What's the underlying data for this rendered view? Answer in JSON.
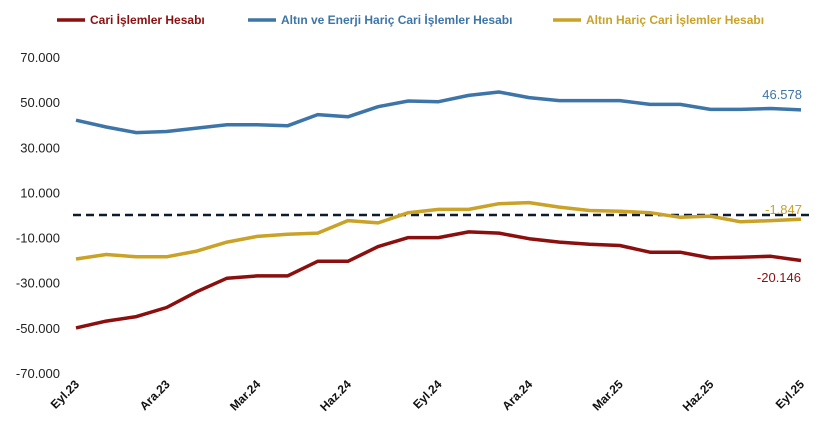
{
  "chart_data": {
    "type": "line",
    "title": "",
    "xlabel": "",
    "ylabel": "",
    "ylim": [
      -70000,
      70000
    ],
    "yticks": [
      "70.000",
      "50.000",
      "30.000",
      "10.000",
      "-10.000",
      "-30.000",
      "-50.000",
      "-70.000"
    ],
    "ytick_values": [
      70000,
      50000,
      30000,
      10000,
      -10000,
      -30000,
      -50000,
      -70000
    ],
    "x": [
      "Eyl.23",
      "Eki.23",
      "Kas.23",
      "Ara.23",
      "Oca.24",
      "Şub.24",
      "Mar.24",
      "Nis.24",
      "May.24",
      "Haz.24",
      "Tem.24",
      "Ağu.24",
      "Eyl.24",
      "Eki.24",
      "Kas.24",
      "Ara.24",
      "Oca.25",
      "Şub.25",
      "Mar.25",
      "Nis.25",
      "May.25",
      "Haz.25",
      "Tem.25",
      "Ağu.25",
      "Eyl.25"
    ],
    "xtick_labels": [
      "Eyl.23",
      "Ara.23",
      "Mar.24",
      "Haz.24",
      "Eyl.24",
      "Ara.24",
      "Mar.25",
      "Haz.25",
      "Eyl.25"
    ],
    "xtick_indices": [
      0,
      3,
      6,
      9,
      12,
      15,
      18,
      21,
      24
    ],
    "grid": false,
    "legend_position": "top",
    "reference_line": {
      "value": 0,
      "style": "dashed",
      "color": "#0d1b2a"
    },
    "series": [
      {
        "name": "Cari İşlemler Hesabı",
        "color": "#8b0f0f",
        "values": [
          -50000,
          -47000,
          -45000,
          -41000,
          -34000,
          -28000,
          -27000,
          -27000,
          -20500,
          -20500,
          -14000,
          -10000,
          -10000,
          -7500,
          -8000,
          -10500,
          -12000,
          -13000,
          -13500,
          -16500,
          -16500,
          -19000,
          -18700,
          -18300,
          -20146
        ],
        "end_label": "-20.146"
      },
      {
        "name": "Altın ve Enerji Hariç Cari İşlemler Hesabı",
        "color": "#3e75a8",
        "values": [
          42000,
          39000,
          36500,
          37000,
          38500,
          40000,
          40000,
          39500,
          44500,
          43500,
          48000,
          50500,
          50200,
          53000,
          54500,
          52000,
          50700,
          50700,
          50700,
          49000,
          49000,
          46800,
          46800,
          47200,
          46578
        ],
        "end_label": "46.578"
      },
      {
        "name": "Altın Hariç Cari İşlemler Hesabı",
        "color": "#c9a227",
        "values": [
          -19500,
          -17500,
          -18500,
          -18500,
          -16000,
          -12000,
          -9500,
          -8500,
          -8000,
          -2500,
          -3500,
          1000,
          2500,
          2500,
          5000,
          5500,
          3500,
          2000,
          1700,
          1000,
          -1000,
          -500,
          -3000,
          -2500,
          -1847
        ],
        "end_label": "-1.847"
      }
    ]
  }
}
